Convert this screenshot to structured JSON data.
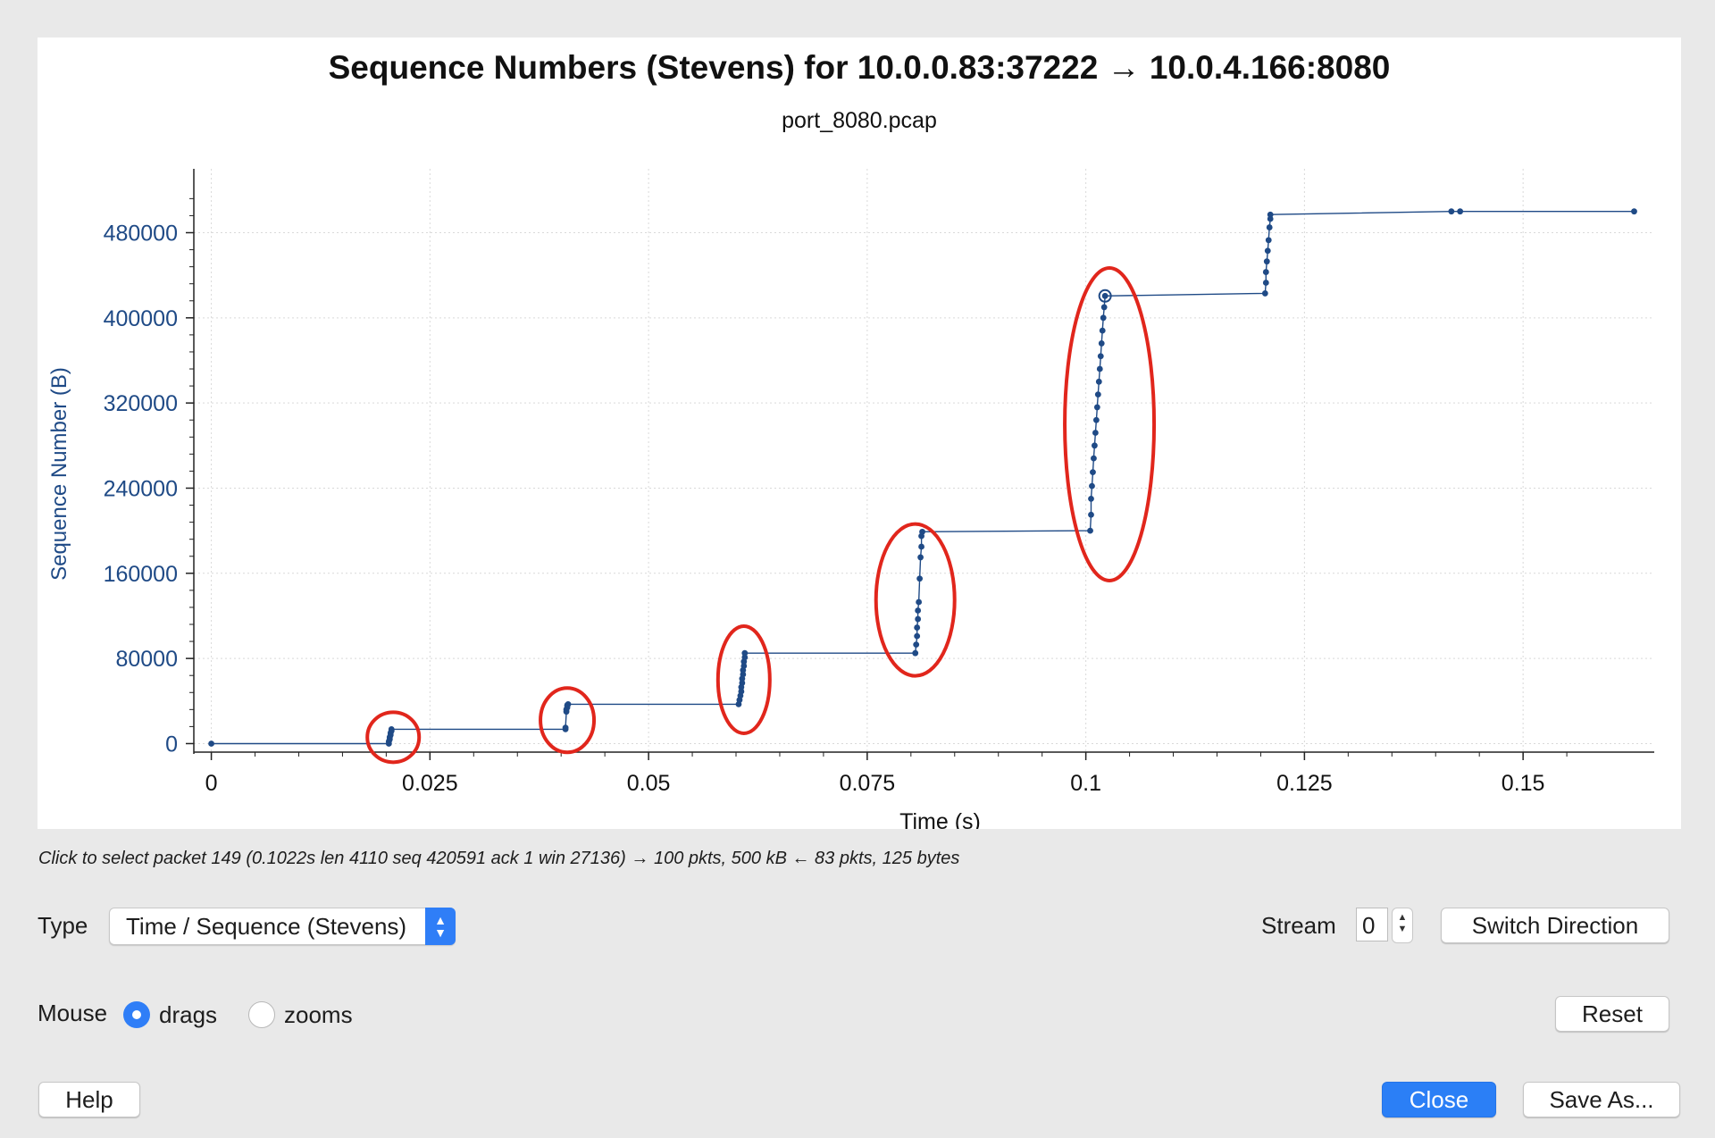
{
  "plot": {
    "title": "Sequence Numbers (Stevens) for 10.0.0.83:37222 → 10.0.4.166:8080",
    "subtitle": "port_8080.pcap"
  },
  "chart_data": {
    "type": "scatter",
    "title": "Sequence Numbers (Stevens) for 10.0.0.83:37222 → 10.0.4.166:8080",
    "subtitle": "port_8080.pcap",
    "xlabel": "Time (s)",
    "ylabel": "Sequence Number (B)",
    "xlim": [
      -0.002,
      0.165
    ],
    "ylim": [
      -8000,
      540000
    ],
    "xticks": [
      0,
      0.025,
      0.05,
      0.075,
      0.1,
      0.125,
      0.15
    ],
    "xtick_labels": [
      "0",
      "0.025",
      "0.05",
      "0.075",
      "0.1",
      "0.125",
      "0.15"
    ],
    "yticks": [
      0,
      80000,
      160000,
      240000,
      320000,
      400000,
      480000
    ],
    "ytick_labels": [
      "0",
      "80000",
      "160000",
      "240000",
      "320000",
      "400000",
      "480000"
    ],
    "grid": true,
    "series": [
      {
        "color": "#1f4a86",
        "points": [
          [
            0,
            0
          ],
          [
            0.0203,
            0
          ],
          [
            0.0203,
            2000
          ],
          [
            0.0204,
            4000
          ],
          [
            0.0204,
            6000
          ],
          [
            0.0205,
            8000
          ],
          [
            0.0205,
            10000
          ],
          [
            0.0206,
            12000
          ],
          [
            0.0206,
            13500
          ],
          [
            0.0405,
            13500
          ],
          [
            0.0405,
            15000
          ],
          [
            0.0406,
            30000
          ],
          [
            0.0406,
            32000
          ],
          [
            0.0407,
            34000
          ],
          [
            0.0407,
            36000
          ],
          [
            0.0408,
            37000
          ],
          [
            0.0603,
            37000
          ],
          [
            0.0604,
            41000
          ],
          [
            0.0605,
            45000
          ],
          [
            0.0606,
            49000
          ],
          [
            0.0606,
            53000
          ],
          [
            0.0607,
            57000
          ],
          [
            0.0607,
            61000
          ],
          [
            0.0608,
            65000
          ],
          [
            0.0608,
            69000
          ],
          [
            0.0609,
            73000
          ],
          [
            0.0609,
            77000
          ],
          [
            0.061,
            81000
          ],
          [
            0.061,
            85000
          ],
          [
            0.0805,
            85000
          ],
          [
            0.0806,
            93000
          ],
          [
            0.0807,
            101000
          ],
          [
            0.0807,
            109000
          ],
          [
            0.0808,
            117000
          ],
          [
            0.0808,
            125000
          ],
          [
            0.0809,
            133000
          ],
          [
            0.081,
            155000
          ],
          [
            0.0811,
            175000
          ],
          [
            0.0812,
            185000
          ],
          [
            0.0812,
            195000
          ],
          [
            0.0813,
            199000
          ],
          [
            0.1005,
            200000
          ],
          [
            0.1006,
            215000
          ],
          [
            0.1006,
            230000
          ],
          [
            0.1007,
            242000
          ],
          [
            0.1008,
            255000
          ],
          [
            0.1009,
            268000
          ],
          [
            0.101,
            280000
          ],
          [
            0.1011,
            292000
          ],
          [
            0.1012,
            304000
          ],
          [
            0.1013,
            316000
          ],
          [
            0.1014,
            328000
          ],
          [
            0.1015,
            340000
          ],
          [
            0.1016,
            352000
          ],
          [
            0.1017,
            364000
          ],
          [
            0.1018,
            376000
          ],
          [
            0.1019,
            388000
          ],
          [
            0.102,
            400000
          ],
          [
            0.1021,
            410000
          ],
          [
            0.1022,
            420591
          ],
          [
            0.1205,
            423000
          ],
          [
            0.1206,
            433000
          ],
          [
            0.1206,
            443000
          ],
          [
            0.1207,
            453000
          ],
          [
            0.1208,
            463000
          ],
          [
            0.1209,
            473000
          ],
          [
            0.121,
            485000
          ],
          [
            0.1211,
            493000
          ],
          [
            0.1211,
            497000
          ],
          [
            0.1418,
            500000
          ],
          [
            0.1428,
            500000
          ],
          [
            0.1627,
            500000
          ]
        ],
        "highlight": [
          0.1022,
          420591
        ]
      }
    ],
    "annotations": [
      {
        "shape": "ellipse",
        "color": "#e1261c",
        "center": [
          0.0208,
          6000
        ]
      },
      {
        "shape": "ellipse",
        "color": "#e1261c",
        "center": [
          0.0407,
          22000
        ]
      },
      {
        "shape": "ellipse",
        "color": "#e1261c",
        "center": [
          0.0609,
          60000
        ]
      },
      {
        "shape": "ellipse",
        "color": "#e1261c",
        "center": [
          0.0805,
          135000
        ]
      },
      {
        "shape": "ellipse",
        "color": "#e1261c",
        "center": [
          0.1027,
          300000
        ]
      }
    ]
  },
  "status": "Click to select packet 149 (0.1022s len 4110 seq 420591 ack 1 win 27136) → 100 pkts, 500 kB ← 83 pkts, 125 bytes",
  "controls": {
    "type_label": "Type",
    "type_value": "Time / Sequence (Stevens)",
    "stream_label": "Stream",
    "stream_value": "0",
    "switch_direction": "Switch Direction",
    "mouse_label": "Mouse",
    "mouse_drags": "drags",
    "mouse_zooms": "zooms",
    "reset": "Reset"
  },
  "buttons": {
    "help": "Help",
    "close": "Close",
    "save_as": "Save As..."
  },
  "colors": {
    "accent": "#2f7ef7",
    "series": "#1f4a86",
    "annotation": "#e1261c"
  }
}
